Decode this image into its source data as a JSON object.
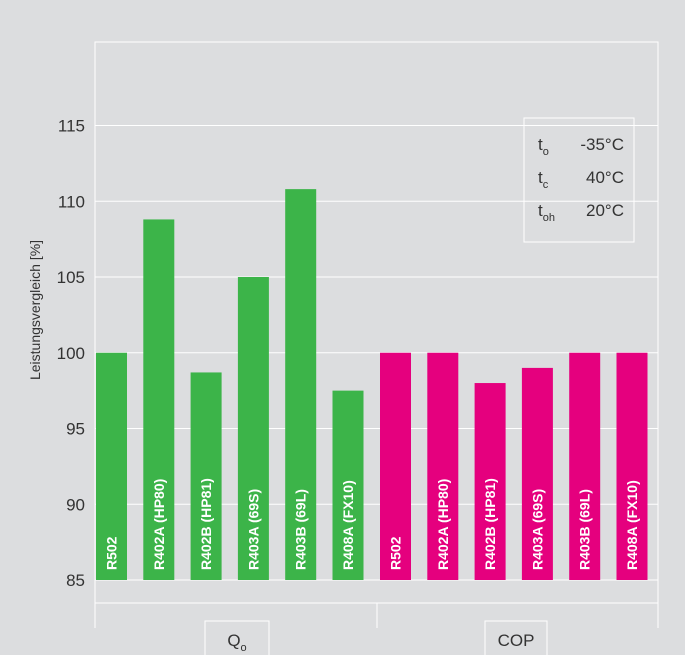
{
  "chart_data": {
    "type": "bar",
    "ylabel": "Leistungsvergleich [%]",
    "ylim": [
      85,
      120
    ],
    "yticks": [
      85,
      90,
      95,
      100,
      105,
      110,
      115
    ],
    "grid": true,
    "groups": [
      {
        "label_main": "Q",
        "label_sub": "o",
        "color": "#3cb449",
        "categories": [
          "R502",
          "R402A (HP80)",
          "R402B (HP81)",
          "R403A (69S)",
          "R403B (69L)",
          "R408A (FX10)"
        ],
        "values": [
          100,
          108.8,
          98.7,
          105,
          110.8,
          97.5
        ]
      },
      {
        "label_main": "COP",
        "label_sub": "",
        "color": "#e5007e",
        "categories": [
          "R502",
          "R402A (HP80)",
          "R402B (HP81)",
          "R403A (69S)",
          "R403B (69L)",
          "R408A (FX10)"
        ],
        "values": [
          100,
          100,
          98,
          99,
          100,
          100
        ]
      }
    ],
    "legend": {
      "placement": "top-right",
      "entries": [
        {
          "symbol": "t",
          "sub": "o",
          "value": "-35°C"
        },
        {
          "symbol": "t",
          "sub": "c",
          "value": "40°C"
        },
        {
          "symbol": "t",
          "sub": "oh",
          "value": "20°C"
        }
      ]
    }
  }
}
